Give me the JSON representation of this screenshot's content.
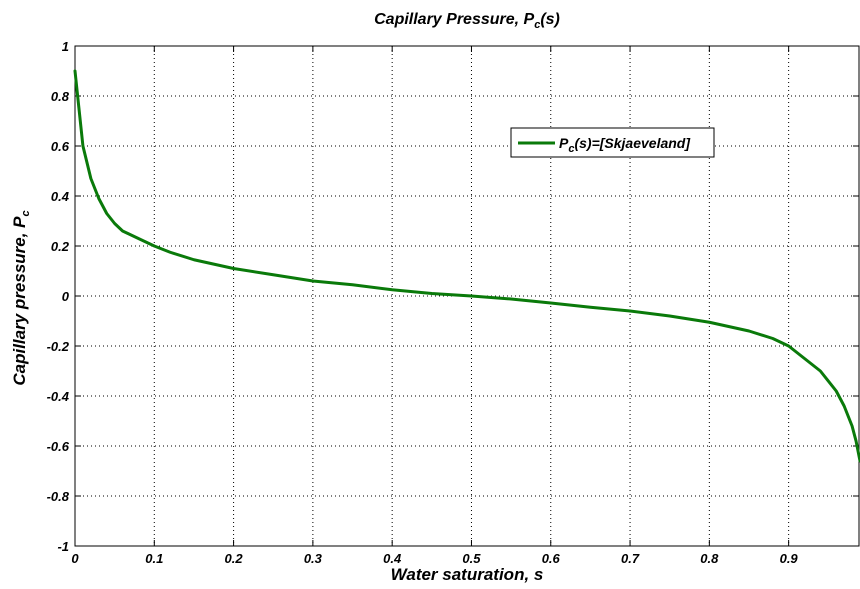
{
  "chart_data": {
    "type": "line",
    "title": "Capillary Pressure, P",
    "title_subscript": "c",
    "title_suffix": "(s)",
    "xlabel": "Water saturation, s",
    "ylabel": "Capillary pressure, P",
    "ylabel_subscript": "c",
    "xlim": [
      0,
      0.99
    ],
    "ylim": [
      -1,
      1
    ],
    "x_ticks": [
      0,
      0.1,
      0.2,
      0.3,
      0.4,
      0.5,
      0.6,
      0.7,
      0.8,
      0.9
    ],
    "x_tick_labels": [
      "0",
      "0.1",
      "0.2",
      "0.3",
      "0.4",
      "0.5",
      "0.6",
      "0.7",
      "0.8",
      "0.9"
    ],
    "y_ticks": [
      -1,
      -0.8,
      -0.6,
      -0.4,
      -0.2,
      0,
      0.2,
      0.4,
      0.6,
      0.8,
      1
    ],
    "y_tick_labels": [
      "-1",
      "-0.8",
      "-0.6",
      "-0.4",
      "-0.2",
      "0",
      "0.2",
      "0.4",
      "0.6",
      "0.8",
      "1"
    ],
    "grid": true,
    "legend_position": "top-right",
    "colors": {
      "series": "#0a7a0a"
    },
    "series": [
      {
        "name_prefix": "P",
        "name_subscript": "c",
        "name_suffix": "(s)=[Skjaeveland]",
        "x": [
          0.0,
          0.005,
          0.01,
          0.02,
          0.03,
          0.04,
          0.05,
          0.06,
          0.08,
          0.1,
          0.12,
          0.15,
          0.2,
          0.25,
          0.3,
          0.35,
          0.4,
          0.45,
          0.5,
          0.55,
          0.6,
          0.65,
          0.7,
          0.75,
          0.8,
          0.85,
          0.88,
          0.9,
          0.92,
          0.94,
          0.96,
          0.97,
          0.98,
          0.985,
          0.99
        ],
        "y": [
          0.9,
          0.75,
          0.6,
          0.47,
          0.39,
          0.33,
          0.29,
          0.26,
          0.23,
          0.2,
          0.175,
          0.145,
          0.11,
          0.085,
          0.06,
          0.045,
          0.025,
          0.01,
          0.0,
          -0.012,
          -0.028,
          -0.045,
          -0.06,
          -0.08,
          -0.105,
          -0.14,
          -0.17,
          -0.2,
          -0.25,
          -0.3,
          -0.38,
          -0.44,
          -0.52,
          -0.58,
          -0.66
        ]
      }
    ]
  }
}
